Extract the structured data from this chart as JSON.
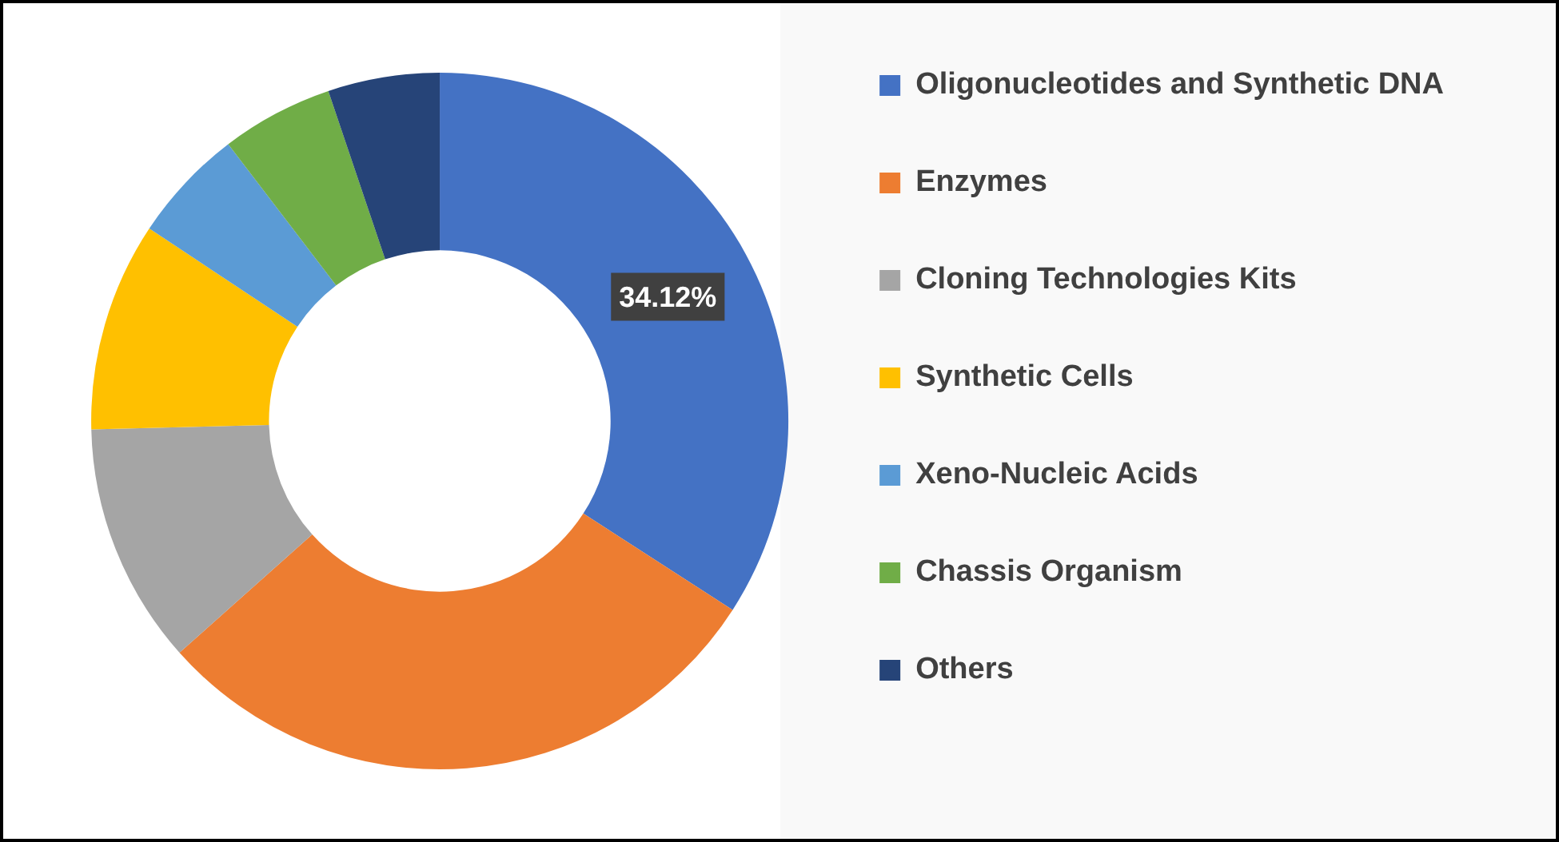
{
  "chart_data": {
    "type": "donut",
    "categories": [
      "Oligonucleotides and Synthetic DNA",
      "Enzymes",
      "Cloning Technologies Kits",
      "Synthetic Cells",
      "Xeno-Nucleic Acids",
      "Chassis Organism",
      "Others"
    ],
    "values": [
      34.12,
      29.3,
      11.2,
      9.7,
      5.3,
      5.2,
      5.18
    ],
    "colors": [
      "#4472c4",
      "#ed7d31",
      "#a5a5a5",
      "#ffc000",
      "#5b9bd5",
      "#70ad47",
      "#264478"
    ],
    "value_labels": [
      "34.12%",
      null,
      null,
      null,
      null,
      null,
      null
    ],
    "legend": "right"
  }
}
